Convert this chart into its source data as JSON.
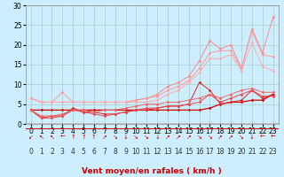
{
  "background_color": "#cceeff",
  "grid_color": "#aacccc",
  "xlabel": "Vent moyen/en rafales ( km/h )",
  "x": [
    0,
    1,
    2,
    3,
    4,
    5,
    6,
    7,
    8,
    9,
    10,
    11,
    12,
    13,
    14,
    15,
    16,
    17,
    18,
    19,
    20,
    21,
    22,
    23
  ],
  "ylim": [
    0,
    30
  ],
  "xlim": [
    -0.5,
    23.5
  ],
  "yticks": [
    0,
    5,
    10,
    15,
    20,
    25,
    30
  ],
  "series": [
    {
      "color": "#ff8888",
      "lw": 0.7,
      "marker": "D",
      "ms": 1.8,
      "values": [
        6.5,
        5.5,
        5.5,
        5.5,
        5.5,
        5.5,
        5.5,
        5.5,
        5.5,
        5.5,
        6.0,
        6.5,
        7.5,
        9.5,
        10.5,
        12.0,
        16.0,
        21.0,
        19.0,
        20.0,
        14.0,
        24.0,
        18.0,
        27.0
      ]
    },
    {
      "color": "#ff9999",
      "lw": 0.7,
      "marker": "D",
      "ms": 1.8,
      "values": [
        6.5,
        5.5,
        5.5,
        8.0,
        5.5,
        5.5,
        5.5,
        5.5,
        5.5,
        5.5,
        6.0,
        6.5,
        7.0,
        8.5,
        9.5,
        11.0,
        14.0,
        18.0,
        18.5,
        18.5,
        14.0,
        23.5,
        17.5,
        17.0
      ]
    },
    {
      "color": "#ffaaaa",
      "lw": 0.7,
      "marker": "D",
      "ms": 1.8,
      "values": [
        6.5,
        5.5,
        5.5,
        5.5,
        5.5,
        5.5,
        5.5,
        5.5,
        5.5,
        5.5,
        5.5,
        5.5,
        6.0,
        7.5,
        8.5,
        10.5,
        13.0,
        16.5,
        16.5,
        17.5,
        13.5,
        20.5,
        14.5,
        13.5
      ]
    },
    {
      "color": "#cc0000",
      "lw": 0.9,
      "marker": "D",
      "ms": 1.8,
      "values": [
        3.5,
        3.5,
        3.5,
        3.5,
        3.5,
        3.5,
        3.5,
        3.5,
        3.5,
        3.5,
        3.5,
        3.5,
        3.5,
        3.5,
        3.5,
        3.5,
        3.5,
        4.0,
        5.0,
        5.5,
        5.5,
        6.0,
        6.0,
        7.5
      ]
    },
    {
      "color": "#dd2222",
      "lw": 0.7,
      "marker": "D",
      "ms": 1.8,
      "values": [
        3.5,
        1.5,
        2.0,
        2.0,
        4.0,
        3.0,
        3.0,
        2.5,
        2.5,
        3.0,
        3.5,
        3.5,
        4.0,
        4.5,
        4.5,
        5.0,
        10.5,
        8.5,
        5.0,
        5.5,
        6.0,
        8.5,
        6.5,
        7.5
      ]
    },
    {
      "color": "#ee4444",
      "lw": 0.7,
      "marker": "D",
      "ms": 1.8,
      "values": [
        3.5,
        1.5,
        1.5,
        2.0,
        3.5,
        3.0,
        2.5,
        2.0,
        2.5,
        3.0,
        3.5,
        4.0,
        4.0,
        4.5,
        4.5,
        5.0,
        5.5,
        7.5,
        5.5,
        6.5,
        7.5,
        8.5,
        7.0,
        7.0
      ]
    },
    {
      "color": "#ee6666",
      "lw": 0.7,
      "marker": "D",
      "ms": 1.8,
      "values": [
        3.5,
        2.0,
        2.0,
        2.5,
        3.5,
        3.5,
        3.0,
        3.5,
        3.5,
        4.0,
        4.5,
        5.0,
        5.0,
        5.5,
        5.5,
        6.0,
        6.5,
        7.5,
        6.5,
        7.5,
        8.5,
        9.0,
        8.0,
        8.0
      ]
    }
  ],
  "wind_arrows": [
    "↙",
    "↖",
    "↖",
    "←",
    "↑",
    "↑",
    "↑",
    "↗",
    "↘",
    "↓",
    "↘",
    "↘",
    "↓",
    "↗",
    "↗",
    "↗",
    "↘",
    "↘",
    "↗",
    "↗",
    "↘",
    "↓",
    "←",
    "←"
  ],
  "tick_fontsize": 5.5,
  "axis_fontsize": 6.5
}
